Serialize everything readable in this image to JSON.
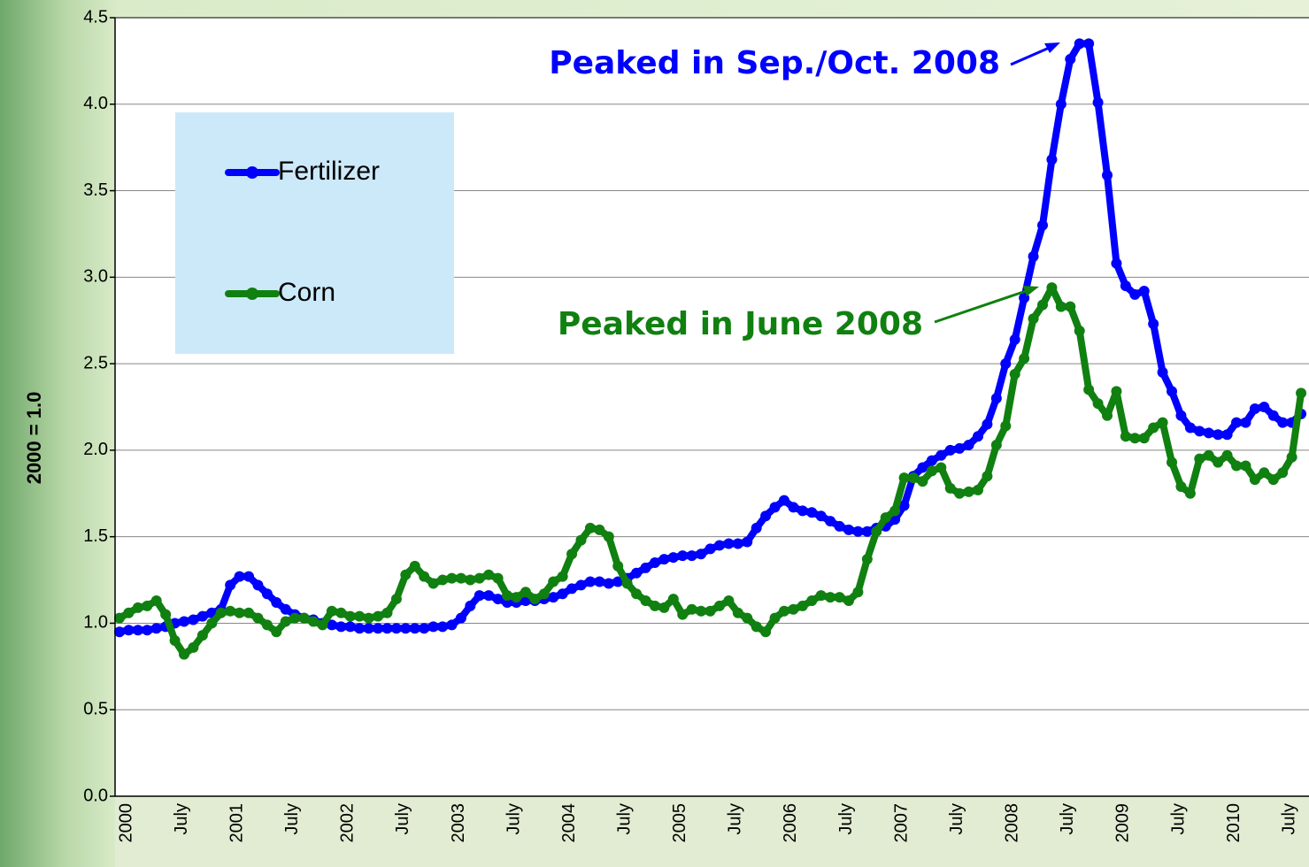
{
  "chart_data": {
    "type": "line",
    "y_label": "2000 = 1.0",
    "categories": [
      "2000",
      null,
      null,
      null,
      null,
      null,
      "July",
      null,
      null,
      null,
      null,
      null,
      "2001",
      null,
      null,
      null,
      null,
      null,
      "July",
      null,
      null,
      null,
      null,
      null,
      "2002",
      null,
      null,
      null,
      null,
      null,
      "July",
      null,
      null,
      null,
      null,
      null,
      "2003",
      null,
      null,
      null,
      null,
      null,
      "July",
      null,
      null,
      null,
      null,
      null,
      "2004",
      null,
      null,
      null,
      null,
      null,
      "July",
      null,
      null,
      null,
      null,
      null,
      "2005",
      null,
      null,
      null,
      null,
      null,
      "July",
      null,
      null,
      null,
      null,
      null,
      "2006",
      null,
      null,
      null,
      null,
      null,
      "July",
      null,
      null,
      null,
      null,
      null,
      "2007",
      null,
      null,
      null,
      null,
      null,
      "July",
      null,
      null,
      null,
      null,
      null,
      "2008",
      null,
      null,
      null,
      null,
      null,
      "July",
      null,
      null,
      null,
      null,
      null,
      "2009",
      null,
      null,
      null,
      null,
      null,
      "July",
      null,
      null,
      null,
      null,
      null,
      "2010",
      null,
      null,
      null,
      null,
      null,
      "July",
      null,
      null
    ],
    "series": [
      {
        "name": "Fertilizer",
        "color": "#0000ff",
        "values": [
          0.95,
          0.96,
          0.96,
          0.96,
          0.97,
          0.98,
          1.0,
          1.01,
          1.02,
          1.04,
          1.06,
          1.08,
          1.22,
          1.27,
          1.27,
          1.22,
          1.17,
          1.12,
          1.08,
          1.05,
          1.03,
          1.02,
          1.0,
          0.99,
          0.98,
          0.98,
          0.97,
          0.97,
          0.97,
          0.97,
          0.97,
          0.97,
          0.97,
          0.97,
          0.98,
          0.98,
          0.99,
          1.03,
          1.1,
          1.16,
          1.16,
          1.14,
          1.12,
          1.12,
          1.13,
          1.13,
          1.14,
          1.15,
          1.17,
          1.2,
          1.22,
          1.24,
          1.24,
          1.23,
          1.24,
          1.26,
          1.29,
          1.32,
          1.35,
          1.37,
          1.38,
          1.39,
          1.39,
          1.4,
          1.43,
          1.45,
          1.46,
          1.46,
          1.47,
          1.55,
          1.62,
          1.67,
          1.71,
          1.67,
          1.65,
          1.64,
          1.62,
          1.59,
          1.56,
          1.54,
          1.53,
          1.53,
          1.55,
          1.56,
          1.6,
          1.68,
          1.85,
          1.9,
          1.94,
          1.97,
          2.0,
          2.01,
          2.03,
          2.08,
          2.15,
          2.3,
          2.5,
          2.64,
          2.88,
          3.12,
          3.3,
          3.68,
          4.0,
          4.26,
          4.35,
          4.35,
          4.01,
          3.59,
          3.08,
          2.95,
          2.9,
          2.92,
          2.73,
          2.45,
          2.34,
          2.2,
          2.13,
          2.11,
          2.1,
          2.09,
          2.09,
          2.16,
          2.16,
          2.24,
          2.25,
          2.2,
          2.16,
          2.16,
          2.21
        ]
      },
      {
        "name": "Corn",
        "color": "#108010",
        "values": [
          1.03,
          1.06,
          1.09,
          1.1,
          1.13,
          1.05,
          0.9,
          0.82,
          0.86,
          0.93,
          1.0,
          1.06,
          1.07,
          1.06,
          1.06,
          1.03,
          0.99,
          0.95,
          1.01,
          1.03,
          1.03,
          1.01,
          0.99,
          1.07,
          1.06,
          1.04,
          1.04,
          1.03,
          1.04,
          1.06,
          1.14,
          1.28,
          1.33,
          1.27,
          1.23,
          1.25,
          1.26,
          1.26,
          1.25,
          1.26,
          1.28,
          1.26,
          1.16,
          1.15,
          1.18,
          1.14,
          1.17,
          1.24,
          1.27,
          1.4,
          1.48,
          1.55,
          1.54,
          1.5,
          1.33,
          1.23,
          1.17,
          1.13,
          1.1,
          1.09,
          1.14,
          1.05,
          1.08,
          1.07,
          1.07,
          1.1,
          1.13,
          1.06,
          1.03,
          0.98,
          0.95,
          1.03,
          1.07,
          1.08,
          1.1,
          1.13,
          1.16,
          1.15,
          1.15,
          1.13,
          1.18,
          1.37,
          1.53,
          1.61,
          1.65,
          1.84,
          1.84,
          1.82,
          1.88,
          1.9,
          1.78,
          1.75,
          1.76,
          1.77,
          1.85,
          2.03,
          2.14,
          2.44,
          2.53,
          2.76,
          2.84,
          2.94,
          2.83,
          2.83,
          2.69,
          2.35,
          2.27,
          2.2,
          2.34,
          2.08,
          2.07,
          2.07,
          2.13,
          2.16,
          1.93,
          1.79,
          1.75,
          1.95,
          1.97,
          1.93,
          1.97,
          1.91,
          1.91,
          1.83,
          1.87,
          1.83,
          1.87,
          1.96,
          2.33
        ]
      }
    ],
    "ylim": [
      0,
      4.5
    ],
    "yticks": [
      {
        "value": 0,
        "label": "0.0"
      },
      0.5,
      {
        "value": 1,
        "label": "1.0"
      },
      1.5,
      {
        "value": 2,
        "label": "2.0"
      },
      2.5,
      {
        "value": 3,
        "label": "3.0"
      },
      3.5,
      {
        "value": 4,
        "label": "4.0"
      },
      4.5
    ],
    "grid": true,
    "annotations": [
      {
        "text": "Peaked in Sep./Oct. 2008",
        "color": "#0000ff"
      },
      {
        "text": "Peaked in June 2008",
        "color": "#108010"
      }
    ]
  }
}
